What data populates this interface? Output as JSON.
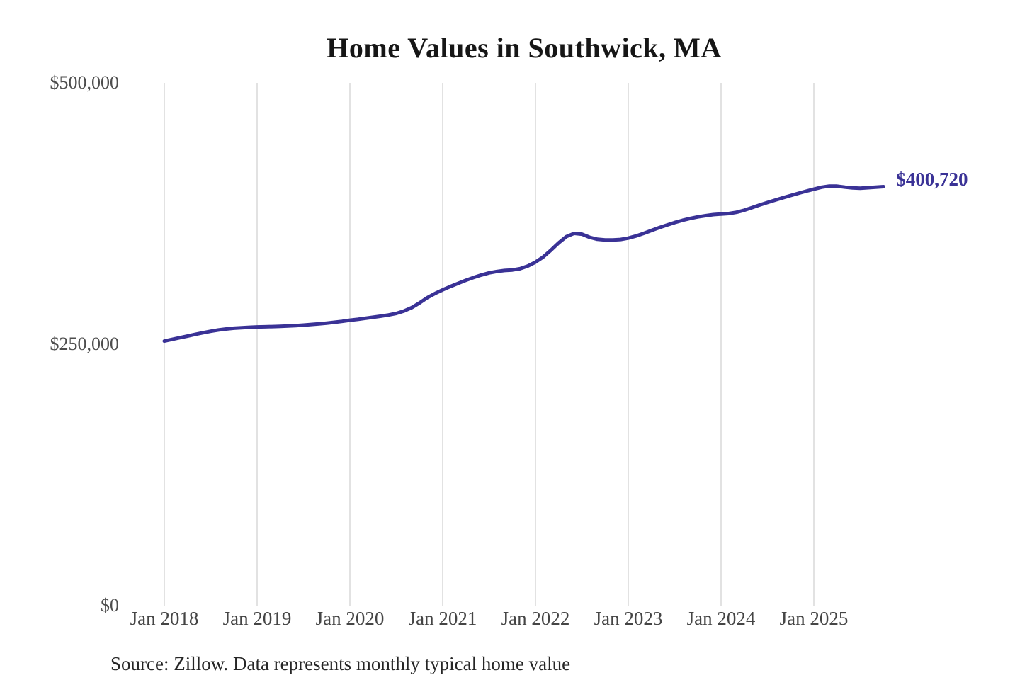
{
  "title": "Home Values in Southwick, MA",
  "source_note": "Source: Zillow. Data represents monthly typical home value",
  "colors": {
    "line": "#3a3296",
    "grid": "#c5c5c5",
    "y_axis_label": "#4d4d4d",
    "x_axis_label": "#454545",
    "title": "#161616",
    "source": "#262626",
    "end_label": "#3a3296",
    "background": "#ffffff"
  },
  "chart_data": {
    "type": "line",
    "title": "Home Values in Southwick, MA",
    "xlabel": "",
    "ylabel": "",
    "ylim": [
      0,
      500000
    ],
    "grid": "vertical-only",
    "legend": "none",
    "series_name": "Monthly typical home value",
    "final_value": 400720,
    "final_value_label": "$400,720",
    "y_ticks": [
      {
        "value": 0,
        "label": "$0"
      },
      {
        "value": 250000,
        "label": "$250,000"
      },
      {
        "value": 500000,
        "label": "$500,000"
      }
    ],
    "x_tick_labels": [
      "Jan 2018",
      "Jan 2019",
      "Jan 2020",
      "Jan 2021",
      "Jan 2022",
      "Jan 2023",
      "Jan 2024",
      "Jan 2025"
    ],
    "start_month": "2018-01",
    "end_month": "2025-10",
    "frequency": "monthly",
    "values": [
      253000,
      254600,
      256200,
      257800,
      259400,
      261000,
      262400,
      263600,
      264600,
      265300,
      265800,
      266200,
      266500,
      266700,
      266900,
      267100,
      267400,
      267800,
      268300,
      268900,
      269500,
      270200,
      271000,
      271900,
      273000,
      273800,
      274800,
      275800,
      276800,
      278000,
      279500,
      281800,
      285000,
      289500,
      294500,
      298500,
      302000,
      305200,
      308200,
      311200,
      313800,
      316200,
      318200,
      319600,
      320500,
      321000,
      322200,
      324800,
      328500,
      333500,
      340000,
      347000,
      353000,
      356000,
      355300,
      352300,
      350400,
      349700,
      349700,
      350200,
      351500,
      353500,
      356000,
      358800,
      361500,
      364000,
      366400,
      368500,
      370300,
      371800,
      373000,
      374000,
      374500,
      375000,
      376200,
      378200,
      380700,
      383200,
      385600,
      387900,
      390100,
      392300,
      394400,
      396400,
      398300,
      400200,
      401300,
      401200,
      400300,
      399500,
      399200,
      399700,
      400300,
      400720
    ]
  }
}
